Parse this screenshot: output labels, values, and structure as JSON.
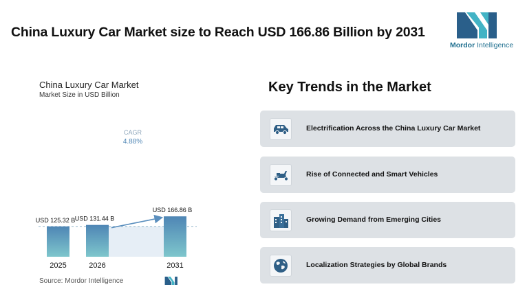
{
  "headline": "China Luxury Car Market size to Reach USD 166.86 Billion by 2031",
  "brand": {
    "name_part1": "Mordor",
    "name_part2": " Intelligence"
  },
  "chart_data": {
    "type": "bar",
    "title": "China Luxury Car Market",
    "subtitle": "Market Size in USD Billion",
    "categories": [
      "2025",
      "2026",
      "2031"
    ],
    "values": [
      125.32,
      131.44,
      166.86
    ],
    "data_labels": [
      "USD 125.32 B",
      "USD 131.44 B",
      "USD 166.86 B"
    ],
    "cagr_label": "CAGR",
    "cagr_value": "4.88%",
    "ylim": [
      0,
      180
    ],
    "grid": false,
    "source": "Source: Mordor Intelligence",
    "colors": {
      "bar_top": "#4f86b5",
      "bar_bottom": "#7ec6cc",
      "band": "#e6eef6",
      "arrow": "#5b8fbe"
    }
  },
  "trends": {
    "title": "Key Trends in the Market",
    "items": [
      {
        "label": "Electrification Across the China Luxury Car Market",
        "icon": "car-icon"
      },
      {
        "label": "Rise of Connected and Smart Vehicles",
        "icon": "scooter-icon"
      },
      {
        "label": "Growing Demand from Emerging Cities",
        "icon": "city-buildings-icon"
      },
      {
        "label": "Localization Strategies by Global Brands",
        "icon": "globe-icon"
      }
    ]
  }
}
